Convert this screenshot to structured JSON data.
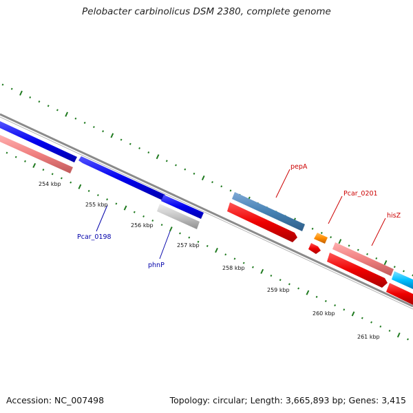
{
  "header": {
    "title": "Pelobacter carbinolicus DSM 2380, complete genome"
  },
  "footer": {
    "accession": "Accession: NC_007498",
    "summary": "Topology: circular; Length: 3,665,893 bp; Genes: 3,415"
  },
  "scale_labels": [
    "254 kbp",
    "255 kbp",
    "256 kbp",
    "257 kbp",
    "258 kbp",
    "259 kbp",
    "260 kbp",
    "261 kbp"
  ],
  "gene_labels": {
    "pepA": "pepA",
    "pcar_0201": "Pcar_0201",
    "hisZ": "hisZ",
    "pcar_0198": "Pcar_0198",
    "phnP": "phnP"
  },
  "colors": {
    "backbone": "#8a8a8a",
    "ticks": "#1f7a1f",
    "blue": "#0000ee",
    "steelblue": "#4682b4",
    "red": "#ee0000",
    "salmon": "#f08080",
    "orange": "#ff8c00",
    "gray": "#bdbdbd",
    "cyan": "#00bfff",
    "label_red": "#cc0000",
    "label_blue": "#0000aa"
  }
}
